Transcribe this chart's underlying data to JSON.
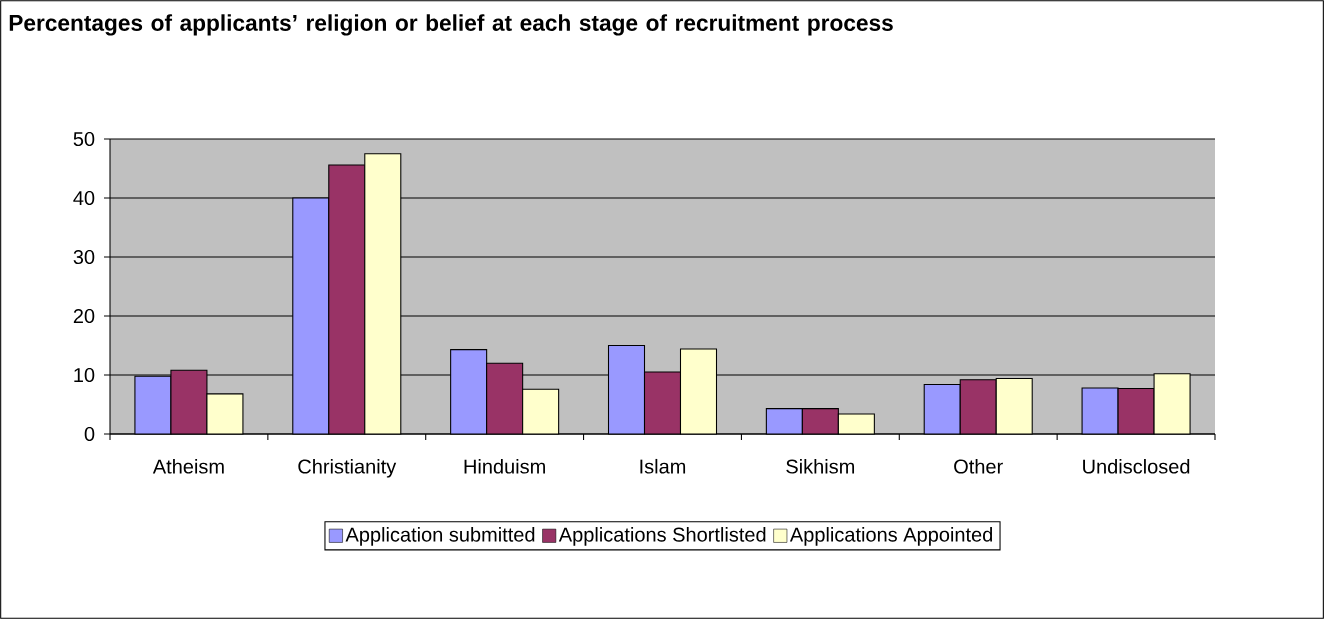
{
  "chart_data": {
    "type": "bar",
    "title": "Percentages of applicants’ religion or belief at each stage of recruitment process",
    "categories": [
      "Atheism",
      "Christianity",
      "Hinduism",
      "Islam",
      "Sikhism",
      "Other",
      "Undisclosed"
    ],
    "series": [
      {
        "name": "Application submitted",
        "color": "#9999ff",
        "values": [
          9.8,
          40.0,
          14.3,
          15.0,
          4.3,
          8.4,
          7.8
        ]
      },
      {
        "name": "Applications Shortlisted",
        "color": "#993366",
        "values": [
          10.8,
          45.6,
          12.0,
          10.5,
          4.3,
          9.2,
          7.7
        ]
      },
      {
        "name": "Applications Appointed",
        "color": "#ffffcc",
        "values": [
          6.8,
          47.5,
          7.6,
          14.4,
          3.4,
          9.4,
          10.2
        ]
      }
    ],
    "ylim": [
      0,
      50
    ],
    "yticks": [
      0,
      10,
      20,
      30,
      40,
      50
    ],
    "grid": "y",
    "legend": "bottom"
  }
}
